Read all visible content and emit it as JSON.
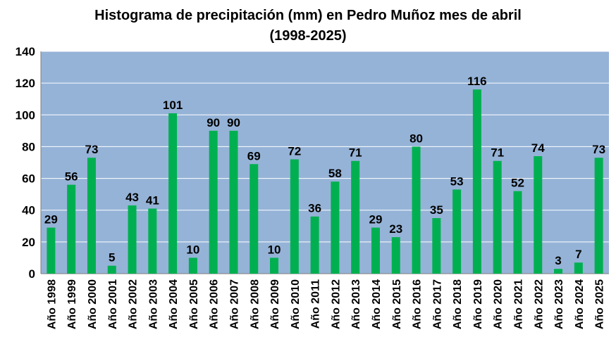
{
  "chart_data": {
    "type": "bar",
    "title_line1": "Histograma de precipitación (mm) en Pedro Muñoz mes de abril",
    "title_line2": "(1998-2025)",
    "categories": [
      "Año 1998",
      "Año 1999",
      "Año 2000",
      "Año 2001",
      "Año 2002",
      "Año 2003",
      "Año 2004",
      "Año 2005",
      "Año 2006",
      "Año 2007",
      "Año 2008",
      "Año 2009",
      "Año 2010",
      "Año 2011",
      "Año 2012",
      "Año 2013",
      "Año 2014",
      "Año 2015",
      "Año 2016",
      "Año 2017",
      "Año 2018",
      "Año 2019",
      "Año 2020",
      "Año 2021",
      "Año 2022",
      "Año 2023",
      "Año 2024",
      "Año 2025"
    ],
    "values": [
      29,
      56,
      73,
      5,
      43,
      41,
      101,
      10,
      90,
      90,
      69,
      10,
      72,
      36,
      58,
      71,
      29,
      23,
      80,
      35,
      53,
      116,
      71,
      52,
      74,
      3,
      7,
      73
    ],
    "ylim": [
      0,
      140
    ],
    "yticks": [
      0,
      20,
      40,
      60,
      80,
      100,
      120,
      140
    ],
    "grid": true,
    "legend": "none",
    "colors": {
      "bar": "#00b050",
      "plot_background": "#95b3d7",
      "gridline": "#ffffff",
      "axis": "#7f7f7f"
    }
  }
}
